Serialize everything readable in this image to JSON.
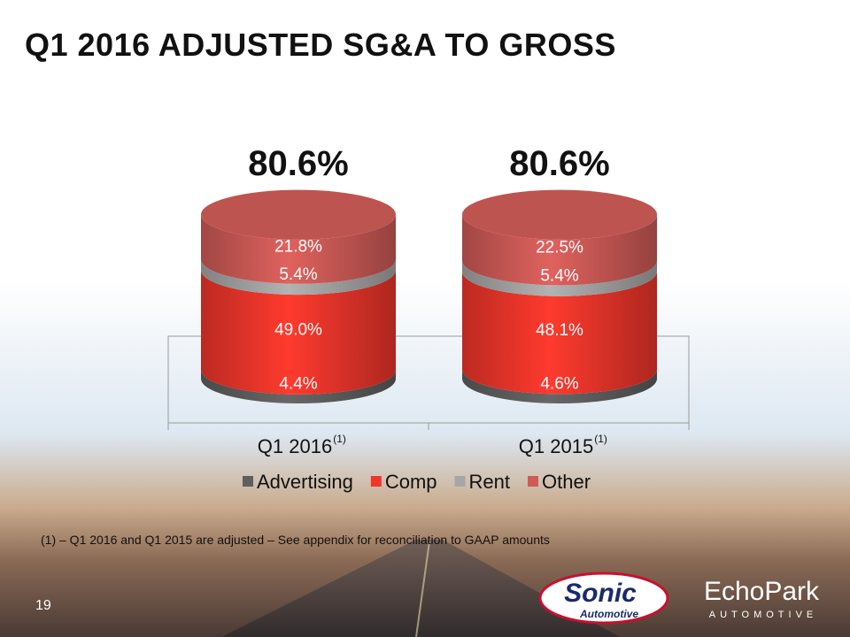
{
  "slide": {
    "title": "Q1 2016 ADJUSTED SG&A TO GROSS",
    "footnote": "(1) – Q1 2016 and Q1 2015 are adjusted – See appendix for reconciliation to GAAP amounts",
    "page_number": "19"
  },
  "logos": {
    "sonic": {
      "line1": "Sonic",
      "line2": "Automotive"
    },
    "echopark": {
      "line1": "EchoPark",
      "line2": "AUTOMOTIVE"
    }
  },
  "colors": {
    "Advertising": "#5f5f5f",
    "Comp": "#f0362b",
    "Rent": "#a6a6a6",
    "Other": "#cf5b57"
  },
  "chart_data": {
    "type": "bar",
    "stacked": true,
    "shape": "cylinder",
    "categories": [
      "Q1 2016",
      "Q1 2015"
    ],
    "category_superscripts": [
      "(1)",
      "(1)"
    ],
    "series": [
      {
        "name": "Advertising",
        "values": [
          4.4,
          4.6
        ],
        "labels": [
          "4.4%",
          "4.6%"
        ]
      },
      {
        "name": "Comp",
        "values": [
          49.0,
          48.1
        ],
        "labels": [
          "49.0%",
          "48.1%"
        ]
      },
      {
        "name": "Rent",
        "values": [
          5.4,
          5.4
        ],
        "labels": [
          "5.4%",
          "5.4%"
        ]
      },
      {
        "name": "Other",
        "values": [
          21.8,
          22.5
        ],
        "labels": [
          "21.8%",
          "22.5%"
        ]
      }
    ],
    "totals": [
      "80.6%",
      "80.6%"
    ],
    "legend": [
      "Advertising",
      "Comp",
      "Rent",
      "Other"
    ],
    "legend_position": "bottom",
    "grid": false
  }
}
